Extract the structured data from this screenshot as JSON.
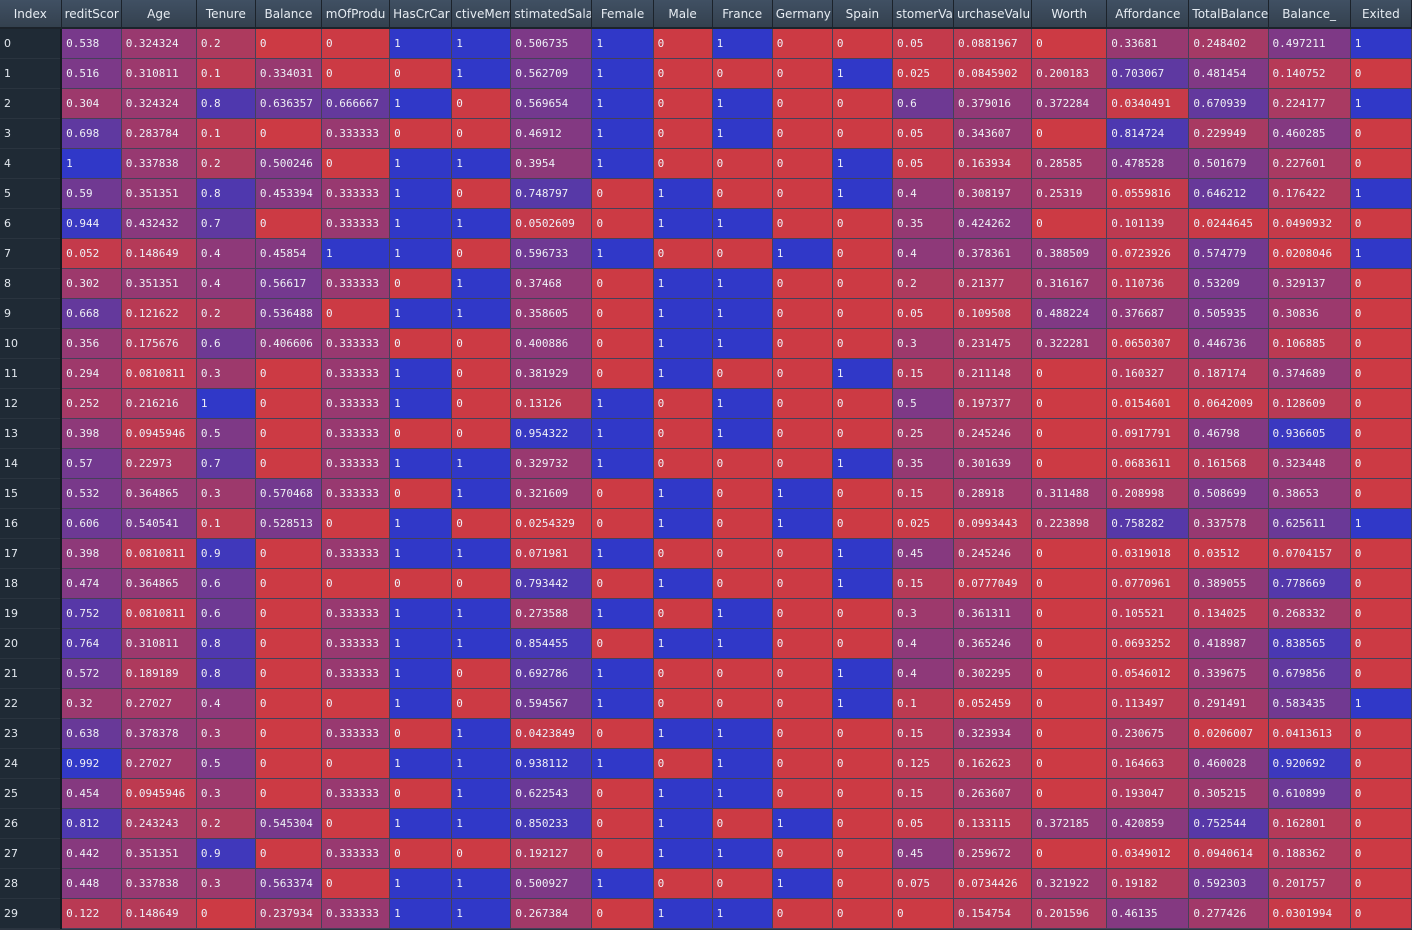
{
  "colors": {
    "low": "#cc3a44",
    "high": "#3038c8",
    "header_bg": "#3b4959",
    "index_bg": "#1f2a35"
  },
  "columns": [
    "Index",
    "reditScor",
    "Age",
    "Tenure",
    "Balance",
    "mOfProdu",
    "HasCrCar",
    "ctiveMem",
    "stimatedSalar",
    "Female",
    "Male",
    "France",
    "Germany",
    "Spain",
    "stomerVa",
    "urchaseValu",
    "Worth",
    "Affordance",
    "TotalBalance",
    "Balance_",
    "Exited"
  ],
  "rows": [
    [
      "0",
      "0.538",
      "0.324324",
      "0.2",
      "0",
      "0",
      "1",
      "1",
      "0.506735",
      "1",
      "0",
      "1",
      "0",
      "0",
      "0.05",
      "0.0881967",
      "0",
      "0.33681",
      "0.248402",
      "0.497211",
      "1"
    ],
    [
      "1",
      "0.516",
      "0.310811",
      "0.1",
      "0.334031",
      "0",
      "0",
      "1",
      "0.562709",
      "1",
      "0",
      "0",
      "0",
      "1",
      "0.025",
      "0.0845902",
      "0.200183",
      "0.703067",
      "0.481454",
      "0.140752",
      "0"
    ],
    [
      "2",
      "0.304",
      "0.324324",
      "0.8",
      "0.636357",
      "0.666667",
      "1",
      "0",
      "0.569654",
      "1",
      "0",
      "1",
      "0",
      "0",
      "0.6",
      "0.379016",
      "0.372284",
      "0.0340491",
      "0.670939",
      "0.224177",
      "1"
    ],
    [
      "3",
      "0.698",
      "0.283784",
      "0.1",
      "0",
      "0.333333",
      "0",
      "0",
      "0.46912",
      "1",
      "0",
      "1",
      "0",
      "0",
      "0.05",
      "0.343607",
      "0",
      "0.814724",
      "0.229949",
      "0.460285",
      "0"
    ],
    [
      "4",
      "1",
      "0.337838",
      "0.2",
      "0.500246",
      "0",
      "1",
      "1",
      "0.3954",
      "1",
      "0",
      "0",
      "0",
      "1",
      "0.05",
      "0.163934",
      "0.28585",
      "0.478528",
      "0.501679",
      "0.227601",
      "0"
    ],
    [
      "5",
      "0.59",
      "0.351351",
      "0.8",
      "0.453394",
      "0.333333",
      "1",
      "0",
      "0.748797",
      "0",
      "1",
      "0",
      "0",
      "1",
      "0.4",
      "0.308197",
      "0.25319",
      "0.0559816",
      "0.646212",
      "0.176422",
      "1"
    ],
    [
      "6",
      "0.944",
      "0.432432",
      "0.7",
      "0",
      "0.333333",
      "1",
      "1",
      "0.0502609",
      "0",
      "1",
      "1",
      "0",
      "0",
      "0.35",
      "0.424262",
      "0",
      "0.101139",
      "0.0244645",
      "0.0490932",
      "0"
    ],
    [
      "7",
      "0.052",
      "0.148649",
      "0.4",
      "0.45854",
      "1",
      "1",
      "0",
      "0.596733",
      "1",
      "0",
      "0",
      "1",
      "0",
      "0.4",
      "0.378361",
      "0.388509",
      "0.0723926",
      "0.574779",
      "0.0208046",
      "1"
    ],
    [
      "8",
      "0.302",
      "0.351351",
      "0.4",
      "0.56617",
      "0.333333",
      "0",
      "1",
      "0.37468",
      "0",
      "1",
      "1",
      "0",
      "0",
      "0.2",
      "0.21377",
      "0.316167",
      "0.110736",
      "0.53209",
      "0.329137",
      "0"
    ],
    [
      "9",
      "0.668",
      "0.121622",
      "0.2",
      "0.536488",
      "0",
      "1",
      "1",
      "0.358605",
      "0",
      "1",
      "1",
      "0",
      "0",
      "0.05",
      "0.109508",
      "0.488224",
      "0.376687",
      "0.505935",
      "0.30836",
      "0"
    ],
    [
      "10",
      "0.356",
      "0.175676",
      "0.6",
      "0.406606",
      "0.333333",
      "0",
      "0",
      "0.400886",
      "0",
      "1",
      "1",
      "0",
      "0",
      "0.3",
      "0.231475",
      "0.322281",
      "0.0650307",
      "0.446736",
      "0.106885",
      "0"
    ],
    [
      "11",
      "0.294",
      "0.0810811",
      "0.3",
      "0",
      "0.333333",
      "1",
      "0",
      "0.381929",
      "0",
      "1",
      "0",
      "0",
      "1",
      "0.15",
      "0.211148",
      "0",
      "0.160327",
      "0.187174",
      "0.374689",
      "0"
    ],
    [
      "12",
      "0.252",
      "0.216216",
      "1",
      "0",
      "0.333333",
      "1",
      "0",
      "0.13126",
      "1",
      "0",
      "1",
      "0",
      "0",
      "0.5",
      "0.197377",
      "0",
      "0.0154601",
      "0.0642009",
      "0.128609",
      "0"
    ],
    [
      "13",
      "0.398",
      "0.0945946",
      "0.5",
      "0",
      "0.333333",
      "0",
      "0",
      "0.954322",
      "1",
      "0",
      "1",
      "0",
      "0",
      "0.25",
      "0.245246",
      "0",
      "0.0917791",
      "0.46798",
      "0.936605",
      "0"
    ],
    [
      "14",
      "0.57",
      "0.22973",
      "0.7",
      "0",
      "0.333333",
      "1",
      "1",
      "0.329732",
      "1",
      "0",
      "0",
      "0",
      "1",
      "0.35",
      "0.301639",
      "0",
      "0.0683611",
      "0.161568",
      "0.323448",
      "0"
    ],
    [
      "15",
      "0.532",
      "0.364865",
      "0.3",
      "0.570468",
      "0.333333",
      "0",
      "1",
      "0.321609",
      "0",
      "1",
      "0",
      "1",
      "0",
      "0.15",
      "0.28918",
      "0.311488",
      "0.208998",
      "0.508699",
      "0.38653",
      "0"
    ],
    [
      "16",
      "0.606",
      "0.540541",
      "0.1",
      "0.528513",
      "0",
      "1",
      "0",
      "0.0254329",
      "0",
      "1",
      "0",
      "1",
      "0",
      "0.025",
      "0.0993443",
      "0.223898",
      "0.758282",
      "0.337578",
      "0.625611",
      "1"
    ],
    [
      "17",
      "0.398",
      "0.0810811",
      "0.9",
      "0",
      "0.333333",
      "1",
      "1",
      "0.071981",
      "1",
      "0",
      "0",
      "0",
      "1",
      "0.45",
      "0.245246",
      "0",
      "0.0319018",
      "0.03512",
      "0.0704157",
      "0"
    ],
    [
      "18",
      "0.474",
      "0.364865",
      "0.6",
      "0",
      "0",
      "0",
      "0",
      "0.793442",
      "0",
      "1",
      "0",
      "0",
      "1",
      "0.15",
      "0.0777049",
      "0",
      "0.0770961",
      "0.389055",
      "0.778669",
      "0"
    ],
    [
      "19",
      "0.752",
      "0.0810811",
      "0.6",
      "0",
      "0.333333",
      "1",
      "1",
      "0.273588",
      "1",
      "0",
      "1",
      "0",
      "0",
      "0.3",
      "0.361311",
      "0",
      "0.105521",
      "0.134025",
      "0.268332",
      "0"
    ],
    [
      "20",
      "0.764",
      "0.310811",
      "0.8",
      "0",
      "0.333333",
      "1",
      "1",
      "0.854455",
      "0",
      "1",
      "1",
      "0",
      "0",
      "0.4",
      "0.365246",
      "0",
      "0.0693252",
      "0.418987",
      "0.838565",
      "0"
    ],
    [
      "21",
      "0.572",
      "0.189189",
      "0.8",
      "0",
      "0.333333",
      "1",
      "0",
      "0.692786",
      "1",
      "0",
      "0",
      "0",
      "1",
      "0.4",
      "0.302295",
      "0",
      "0.0546012",
      "0.339675",
      "0.679856",
      "0"
    ],
    [
      "22",
      "0.32",
      "0.27027",
      "0.4",
      "0",
      "0",
      "1",
      "0",
      "0.594567",
      "1",
      "0",
      "0",
      "0",
      "1",
      "0.1",
      "0.052459",
      "0",
      "0.113497",
      "0.291491",
      "0.583435",
      "1"
    ],
    [
      "23",
      "0.638",
      "0.378378",
      "0.3",
      "0",
      "0.333333",
      "0",
      "1",
      "0.0423849",
      "0",
      "1",
      "1",
      "0",
      "0",
      "0.15",
      "0.323934",
      "0",
      "0.230675",
      "0.0206007",
      "0.0413613",
      "0"
    ],
    [
      "24",
      "0.992",
      "0.27027",
      "0.5",
      "0",
      "0",
      "1",
      "1",
      "0.938112",
      "1",
      "0",
      "1",
      "0",
      "0",
      "0.125",
      "0.162623",
      "0",
      "0.164663",
      "0.460028",
      "0.920692",
      "0"
    ],
    [
      "25",
      "0.454",
      "0.0945946",
      "0.3",
      "0",
      "0.333333",
      "0",
      "1",
      "0.622543",
      "0",
      "1",
      "1",
      "0",
      "0",
      "0.15",
      "0.263607",
      "0",
      "0.193047",
      "0.305215",
      "0.610899",
      "0"
    ],
    [
      "26",
      "0.812",
      "0.243243",
      "0.2",
      "0.545304",
      "0",
      "1",
      "1",
      "0.850233",
      "0",
      "1",
      "0",
      "1",
      "0",
      "0.05",
      "0.133115",
      "0.372185",
      "0.420859",
      "0.752544",
      "0.162801",
      "0"
    ],
    [
      "27",
      "0.442",
      "0.351351",
      "0.9",
      "0",
      "0.333333",
      "0",
      "0",
      "0.192127",
      "0",
      "1",
      "1",
      "0",
      "0",
      "0.45",
      "0.259672",
      "0",
      "0.0349012",
      "0.0940614",
      "0.188362",
      "0"
    ],
    [
      "28",
      "0.448",
      "0.337838",
      "0.3",
      "0.563374",
      "0",
      "1",
      "1",
      "0.500927",
      "1",
      "0",
      "0",
      "1",
      "0",
      "0.075",
      "0.0734426",
      "0.321922",
      "0.19182",
      "0.592303",
      "0.201757",
      "0"
    ],
    [
      "29",
      "0.122",
      "0.148649",
      "0",
      "0.237934",
      "0.333333",
      "1",
      "1",
      "0.267384",
      "0",
      "1",
      "1",
      "0",
      "0",
      "0",
      "0.154754",
      "0.201596",
      "0.46135",
      "0.277426",
      "0.0301994",
      "0"
    ]
  ]
}
